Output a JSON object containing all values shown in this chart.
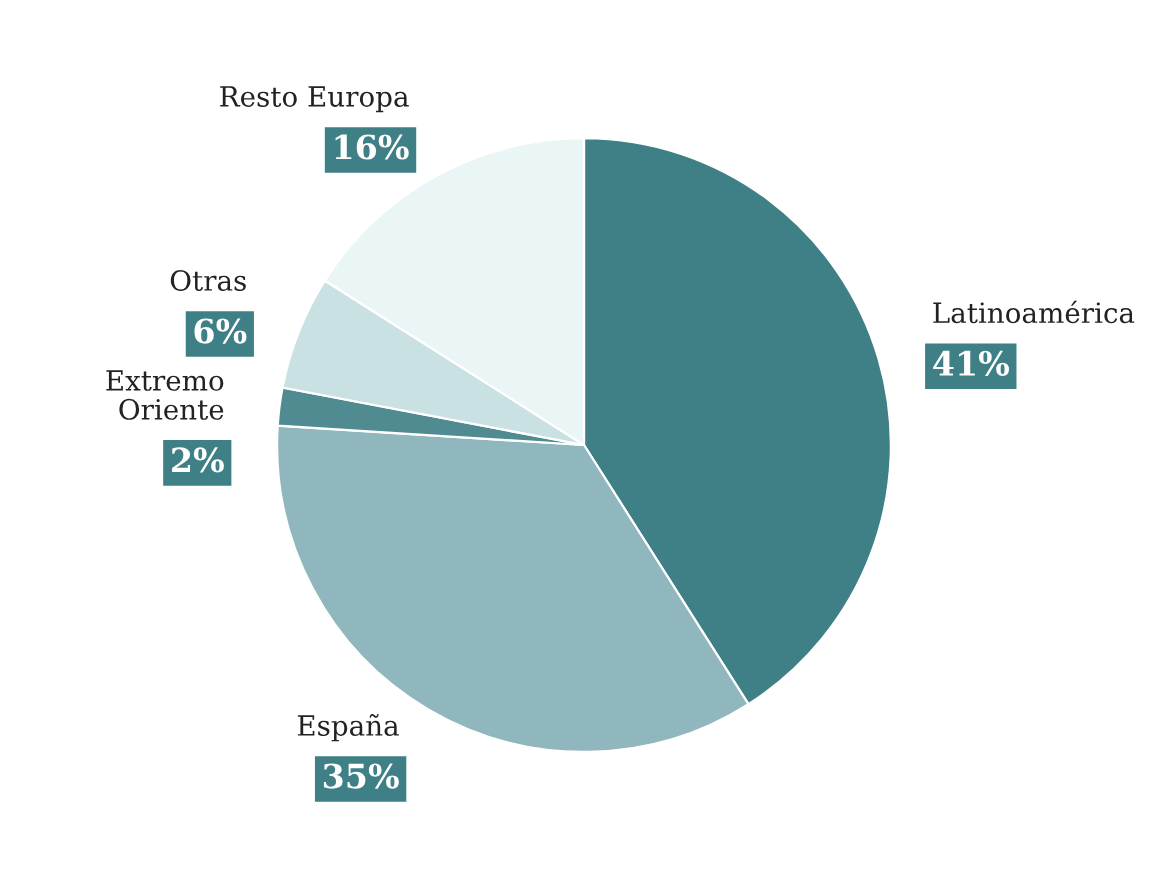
{
  "chart_data": {
    "type": "pie",
    "categories": [
      "Latinoamérica",
      "España",
      "Extremo\nOriente",
      "Otras",
      "Resto Europa"
    ],
    "values": [
      41,
      35,
      2,
      6,
      16
    ],
    "colors": [
      "#3f7f86",
      "#8fb7bd",
      "#4f8b91",
      "#c9e1e3",
      "#eaf5f6"
    ],
    "value_labels": [
      "41%",
      "35%",
      "2%",
      "6%",
      "16%"
    ]
  }
}
